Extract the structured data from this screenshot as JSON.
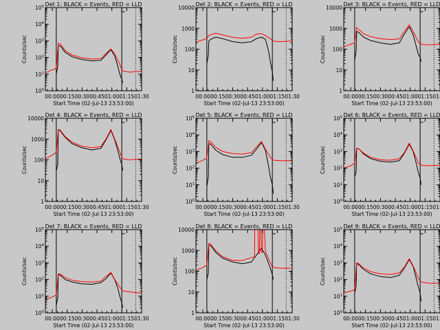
{
  "figure": {
    "background": "#c8c8c8",
    "events_color": "#000000",
    "lld_color": "#ff0000",
    "ylabel": "Counts/sec",
    "xlabel": "Start Time (02-Jul-13 23:53:00)"
  },
  "chart_data": [
    {
      "type": "line",
      "title": "Det 1: BLACK = Events, RED = LLD",
      "xlabel": "Start Time (02-Jul-13 23:53:00)",
      "ylabel": "Counts/sec",
      "xticks": [
        "00:00",
        "00:15",
        "00:30",
        "00:45",
        "01:00",
        "01:15",
        "01:30"
      ],
      "xlim_min": [
        -7,
        90
      ],
      "ylog": true,
      "ylim": [
        1,
        100000
      ],
      "yticks": [
        "10^0",
        "10^1",
        "10^2",
        "10^3",
        "10^4",
        "10^5"
      ],
      "series": [
        {
          "name": "Events",
          "color": "#000000",
          "x": [
            4,
            5.5,
            6,
            8,
            13,
            20,
            30,
            40,
            49,
            54,
            59,
            63,
            66,
            68,
            70,
            71
          ],
          "y": [
            10,
            30,
            500,
            500,
            200,
            110,
            75,
            62,
            68,
            140,
            300,
            120,
            30,
            10,
            5,
            3
          ]
        },
        {
          "name": "LLD",
          "color": "#ff0000",
          "x": [
            -7,
            0,
            4,
            6,
            8,
            13,
            20,
            30,
            40,
            49,
            54,
            59,
            63,
            68,
            70,
            72,
            78,
            90
          ],
          "y": [
            12,
            18,
            22,
            700,
            640,
            260,
            140,
            95,
            80,
            85,
            170,
            330,
            160,
            40,
            18,
            15,
            13,
            15
          ]
        }
      ]
    },
    {
      "type": "line",
      "title": "Det 2: BLACK = Events, RED = LLD",
      "xlabel": "Start Time (02-Jul-13 23:53:00)",
      "ylabel": "Counts/sec",
      "xticks": [
        "00:00",
        "00:15",
        "00:30",
        "00:45",
        "01:00",
        "01:15",
        "01:30"
      ],
      "xlim_min": [
        -7,
        90
      ],
      "ylog": true,
      "ylim": [
        1,
        10000
      ],
      "yticks": [
        "1",
        "10",
        "100",
        "1000",
        "10000"
      ],
      "series": [
        {
          "name": "Events",
          "color": "#000000",
          "x": [
            4,
            5.5,
            6,
            8,
            13,
            20,
            30,
            40,
            49,
            54,
            59,
            63,
            66,
            68,
            70,
            71
          ],
          "y": [
            20,
            50,
            250,
            300,
            380,
            320,
            230,
            200,
            230,
            320,
            380,
            300,
            90,
            25,
            8,
            3
          ]
        },
        {
          "name": "LLD",
          "color": "#ff0000",
          "x": [
            -7,
            0,
            4,
            6,
            8,
            13,
            20,
            30,
            40,
            49,
            54,
            59,
            63,
            68,
            70,
            72,
            78,
            90
          ],
          "y": [
            220,
            280,
            330,
            450,
            500,
            580,
            480,
            370,
            330,
            380,
            520,
            560,
            450,
            320,
            260,
            240,
            230,
            250
          ]
        }
      ]
    },
    {
      "type": "line",
      "title": "Det 3: BLACK = Events, RED = LLD",
      "xlabel": "Start Time (02-Jul-13 23:53:00)",
      "ylabel": "Counts/sec",
      "xticks": [
        "00:00",
        "00:15",
        "00:30",
        "00:45",
        "01:00",
        "01:15",
        "01:30"
      ],
      "xlim_min": [
        -7,
        90
      ],
      "ylog": true,
      "ylim": [
        1,
        10000
      ],
      "yticks": [
        "1",
        "10",
        "100",
        "1000",
        "10000"
      ],
      "series": [
        {
          "name": "Events",
          "color": "#000000",
          "x": [
            4,
            5.5,
            6,
            8,
            13,
            20,
            30,
            40,
            49,
            54,
            59,
            63,
            66,
            68,
            70,
            71
          ],
          "y": [
            30,
            80,
            700,
            650,
            380,
            260,
            200,
            170,
            200,
            520,
            1200,
            480,
            140,
            60,
            40,
            25
          ]
        },
        {
          "name": "LLD",
          "color": "#ff0000",
          "x": [
            -7,
            0,
            4,
            6,
            8,
            13,
            20,
            30,
            40,
            49,
            54,
            59,
            63,
            68,
            70,
            72,
            78,
            90
          ],
          "y": [
            130,
            170,
            210,
            1100,
            900,
            560,
            400,
            320,
            290,
            310,
            700,
            1500,
            700,
            230,
            180,
            170,
            160,
            170
          ]
        }
      ]
    },
    {
      "type": "line",
      "title": "Det 4: BLACK = Events, RED = LLD",
      "xlabel": "Start Time (02-Jul-13 23:53:00)",
      "ylabel": "Counts/sec",
      "xticks": [
        "00:00",
        "00:15",
        "00:30",
        "00:45",
        "01:00",
        "01:15",
        "01:30"
      ],
      "xlim_min": [
        -7,
        90
      ],
      "ylog": true,
      "ylim": [
        1,
        10000
      ],
      "yticks": [
        "1",
        "10",
        "100",
        "1000",
        "10000"
      ],
      "series": [
        {
          "name": "Events",
          "color": "#000000",
          "x": [
            4,
            5.5,
            6,
            8,
            13,
            20,
            30,
            40,
            49,
            54,
            59,
            63,
            66,
            68,
            70,
            71
          ],
          "y": [
            30,
            60,
            2800,
            2500,
            1200,
            600,
            380,
            300,
            360,
            900,
            2600,
            900,
            280,
            120,
            60,
            30
          ]
        },
        {
          "name": "LLD",
          "color": "#ff0000",
          "x": [
            -7,
            0,
            4,
            6,
            8,
            13,
            20,
            30,
            40,
            49,
            54,
            59,
            63,
            68,
            70,
            72,
            78,
            90
          ],
          "y": [
            110,
            170,
            230,
            2900,
            2700,
            1300,
            700,
            450,
            380,
            430,
            1000,
            2900,
            1000,
            240,
            130,
            110,
            100,
            110
          ]
        }
      ]
    },
    {
      "type": "line",
      "title": "Det 5: BLACK = Events, RED = LLD",
      "xlabel": "Start Time (02-Jul-13 23:53:00)",
      "ylabel": "Counts/sec",
      "xticks": [
        "00:00",
        "00:15",
        "00:30",
        "00:45",
        "01:00",
        "01:15",
        "01:30"
      ],
      "xlim_min": [
        -7,
        90
      ],
      "ylog": true,
      "ylim": [
        1,
        100000
      ],
      "yticks": [
        "10^0",
        "10^1",
        "10^2",
        "10^3",
        "10^4",
        "10^5"
      ],
      "series": [
        {
          "name": "Events",
          "color": "#000000",
          "x": [
            4,
            5.5,
            6,
            8,
            13,
            20,
            30,
            40,
            49,
            54,
            59,
            63,
            66,
            68,
            70,
            71
          ],
          "y": [
            8,
            30,
            3000,
            2800,
            1200,
            650,
            450,
            450,
            600,
            1400,
            3500,
            1200,
            150,
            30,
            10,
            3
          ]
        },
        {
          "name": "LLD",
          "color": "#ff0000",
          "x": [
            -7,
            0,
            4,
            6,
            8,
            13,
            20,
            30,
            40,
            49,
            54,
            59,
            63,
            68,
            70,
            72,
            78,
            90
          ],
          "y": [
            200,
            300,
            400,
            4500,
            3800,
            1800,
            1000,
            750,
            700,
            850,
            1900,
            4000,
            1400,
            450,
            330,
            300,
            280,
            280
          ]
        }
      ]
    },
    {
      "type": "line",
      "title": "Det 6: BLACK = Events, RED = LLD",
      "xlabel": "Start Time (02-Jul-13 23:53:00)",
      "ylabel": "Counts/sec",
      "xticks": [
        "00:00",
        "00:15",
        "00:30",
        "00:45",
        "01:00",
        "01:15",
        "01:30"
      ],
      "xlim_min": [
        -7,
        90
      ],
      "ylog": true,
      "ylim": [
        1,
        100000
      ],
      "yticks": [
        "10^0",
        "10^1",
        "10^2",
        "10^3",
        "10^4",
        "10^5"
      ],
      "series": [
        {
          "name": "Events",
          "color": "#000000",
          "x": [
            4,
            5.5,
            6,
            8,
            13,
            20,
            30,
            40,
            49,
            54,
            59,
            63,
            66,
            68,
            70,
            71
          ],
          "y": [
            30,
            60,
            1500,
            1500,
            700,
            380,
            260,
            230,
            280,
            750,
            2800,
            1000,
            200,
            60,
            25,
            10
          ]
        },
        {
          "name": "LLD",
          "color": "#ff0000",
          "x": [
            -7,
            0,
            4,
            6,
            8,
            13,
            20,
            30,
            40,
            49,
            54,
            59,
            63,
            68,
            70,
            72,
            78,
            90
          ],
          "y": [
            100,
            140,
            200,
            1600,
            1500,
            800,
            450,
            320,
            300,
            370,
            850,
            3200,
            1100,
            220,
            160,
            150,
            140,
            150
          ]
        }
      ]
    },
    {
      "type": "line",
      "title": "Det 7: BLACK = Events, RED = LLD",
      "xlabel": "Start Time (02-Jul-13 23:53:00)",
      "ylabel": "Counts/sec",
      "xticks": [
        "00:00",
        "00:15",
        "00:30",
        "00:45",
        "01:00",
        "01:15",
        "01:30"
      ],
      "xlim_min": [
        -7,
        90
      ],
      "ylog": true,
      "ylim": [
        1,
        100000
      ],
      "yticks": [
        "10^0",
        "10^1",
        "10^2",
        "10^3",
        "10^4",
        "10^5"
      ],
      "series": [
        {
          "name": "Events",
          "color": "#000000",
          "x": [
            4,
            5.5,
            6,
            8,
            13,
            20,
            30,
            40,
            49,
            54,
            59,
            63,
            66,
            68,
            70,
            71
          ],
          "y": [
            3,
            8,
            200,
            180,
            100,
            70,
            55,
            52,
            65,
            110,
            250,
            95,
            30,
            10,
            4,
            2
          ]
        },
        {
          "name": "LLD",
          "color": "#ff0000",
          "x": [
            -7,
            0,
            4,
            6,
            8,
            13,
            20,
            30,
            40,
            49,
            54,
            59,
            63,
            68,
            70,
            72,
            78,
            90
          ],
          "y": [
            6,
            9,
            12,
            220,
            210,
            130,
            90,
            75,
            70,
            80,
            150,
            270,
            100,
            35,
            25,
            20,
            18,
            15
          ]
        }
      ]
    },
    {
      "type": "line",
      "title": "Det 8: BLACK = Events, RED = LLD",
      "xlabel": "Start Time (02-Jul-13 23:53:00)",
      "ylabel": "Counts/sec",
      "xticks": [
        "00:00",
        "00:15",
        "00:30",
        "00:45",
        "01:00",
        "01:15",
        "01:30"
      ],
      "xlim_min": [
        -7,
        90
      ],
      "ylog": true,
      "ylim": [
        1,
        10000
      ],
      "yticks": [
        "1",
        "10",
        "100",
        "1000",
        "10000"
      ],
      "series": [
        {
          "name": "Events",
          "color": "#000000",
          "x": [
            4,
            5.5,
            6,
            8,
            13,
            20,
            30,
            40,
            49,
            54,
            59,
            63,
            66,
            68,
            70,
            71
          ],
          "y": [
            40,
            80,
            1800,
            1700,
            800,
            420,
            280,
            230,
            280,
            600,
            1300,
            600,
            250,
            140,
            70,
            40
          ]
        },
        {
          "name": "LLD",
          "color": "#ff0000",
          "x": [
            -7,
            0,
            4,
            6,
            8,
            13,
            20,
            30,
            40,
            49,
            52,
            52.3,
            55.5,
            56,
            57,
            57.2,
            58.5,
            59,
            60,
            60.3,
            62,
            63,
            68,
            70,
            72,
            78,
            90
          ],
          "y": [
            110,
            150,
            200,
            2200,
            2000,
            950,
            500,
            330,
            330,
            450,
            500,
            10000,
            10000,
            700,
            700,
            10000,
            10000,
            800,
            800,
            10000,
            10000,
            900,
            250,
            180,
            150,
            140,
            140
          ]
        }
      ]
    },
    {
      "type": "line",
      "title": "Det 9: BLACK = Events, RED = LLD",
      "xlabel": "Start Time (02-Jul-13 23:53:00)",
      "ylabel": "Counts/sec",
      "xticks": [
        "00:00",
        "00:15",
        "00:30",
        "00:45",
        "01:00",
        "01:15",
        "01:30"
      ],
      "xlim_min": [
        -7,
        90
      ],
      "ylog": true,
      "ylim": [
        1,
        100000
      ],
      "yticks": [
        "10^0",
        "10^1",
        "10^2",
        "10^3",
        "10^4",
        "10^5"
      ],
      "series": [
        {
          "name": "Events",
          "color": "#000000",
          "x": [
            4,
            5.5,
            6,
            8,
            13,
            20,
            30,
            40,
            49,
            54,
            59,
            63,
            66,
            68,
            70,
            71
          ],
          "y": [
            15,
            40,
            900,
            800,
            400,
            220,
            150,
            130,
            180,
            480,
            1600,
            600,
            120,
            40,
            15,
            5
          ]
        },
        {
          "name": "LLD",
          "color": "#ff0000",
          "x": [
            -7,
            0,
            4,
            6,
            8,
            13,
            20,
            30,
            40,
            49,
            54,
            59,
            63,
            68,
            70,
            72,
            78,
            90
          ],
          "y": [
            15,
            20,
            25,
            1000,
            900,
            500,
            300,
            220,
            200,
            250,
            550,
            1800,
            650,
            130,
            80,
            70,
            60,
            60
          ]
        }
      ]
    }
  ]
}
